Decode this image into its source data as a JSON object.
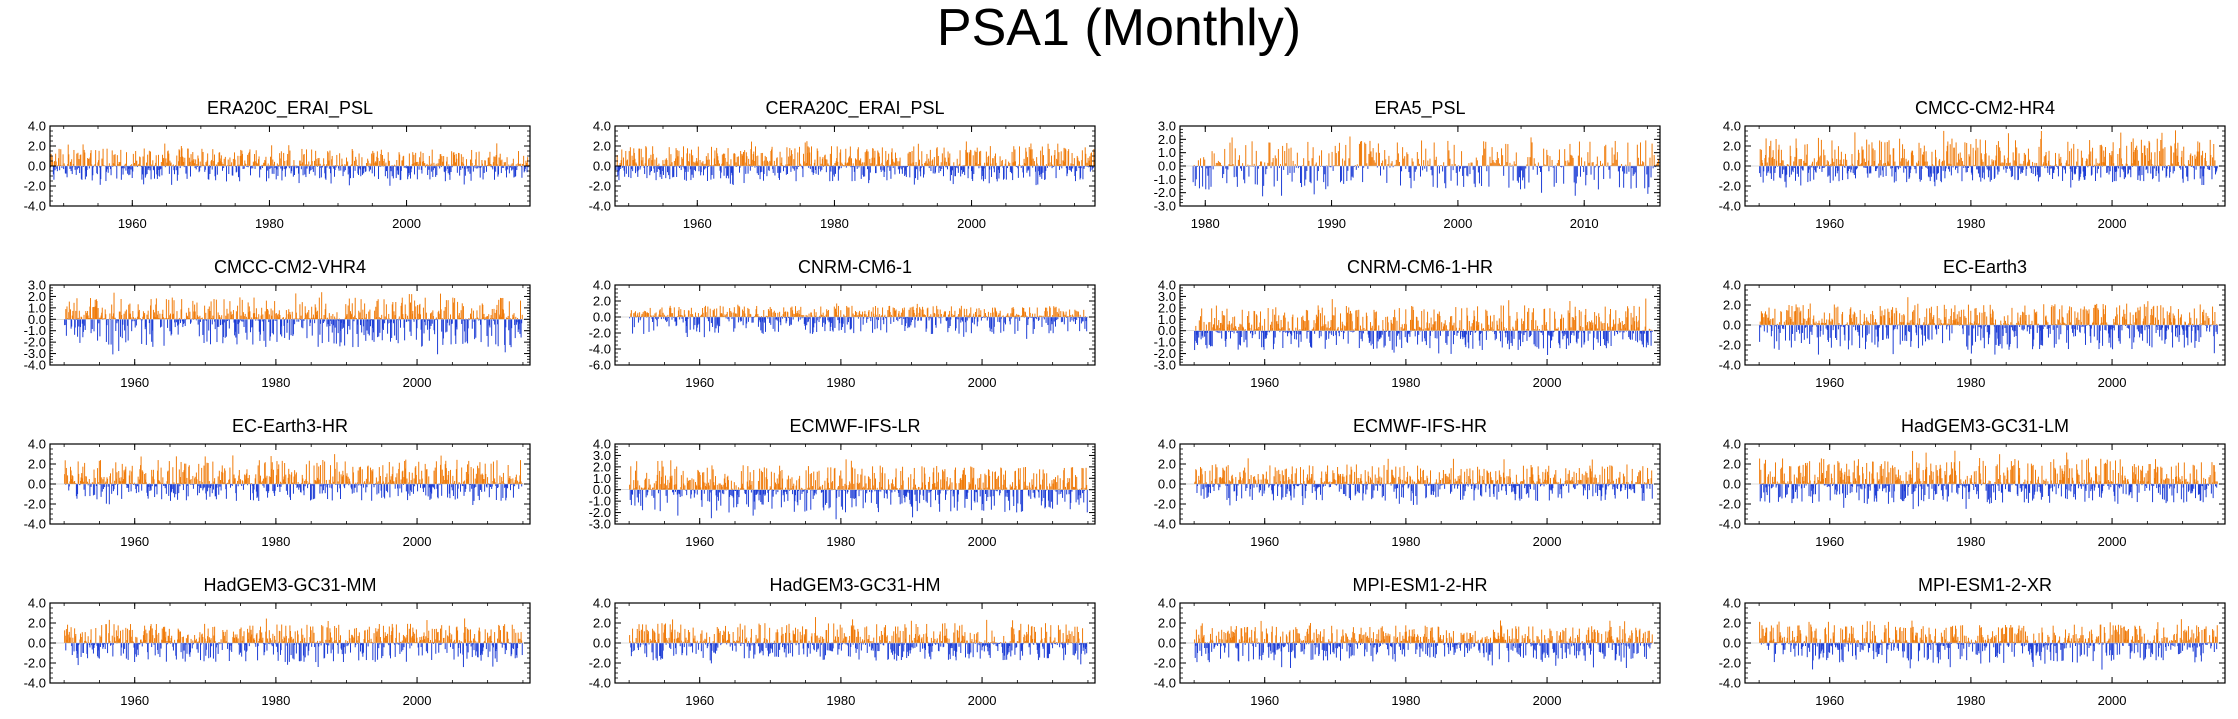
{
  "title": "PSA1 (Monthly)",
  "colors": {
    "positive": "#f07c0c",
    "negative": "#1f3fd6",
    "axis": "#000000"
  },
  "chart_data": [
    {
      "type": "bar",
      "title": "ERA20C_ERAI_PSL",
      "xlim": [
        1948,
        2018
      ],
      "ylim": [
        -4,
        4
      ],
      "yticks": [
        "4.0",
        "2.0",
        "0.0",
        "-2.0",
        "-4.0"
      ],
      "xticks": [
        1960,
        1980,
        2000
      ],
      "x": "monthly 1948-2017",
      "values_summary": {
        "max": 2.3,
        "min": -2.0
      }
    },
    {
      "type": "bar",
      "title": "CERA20C_ERAI_PSL",
      "xlim": [
        1948,
        2018
      ],
      "ylim": [
        -4,
        4
      ],
      "yticks": [
        "4.0",
        "2.0",
        "0.0",
        "-2.0",
        "-4.0"
      ],
      "xticks": [
        1960,
        1980,
        2000
      ],
      "x": "monthly 1948-2017",
      "values_summary": {
        "max": 2.6,
        "min": -2.0
      }
    },
    {
      "type": "bar",
      "title": "ERA5_PSL",
      "xlim": [
        1978,
        2016
      ],
      "ylim": [
        -3,
        3
      ],
      "yticks": [
        "3.0",
        "2.0",
        "1.0",
        "0.0",
        "-1.0",
        "-2.0",
        "-3.0"
      ],
      "xticks": [
        1980,
        1990,
        2000,
        2010
      ],
      "x": "monthly 1979-2015",
      "values_summary": {
        "max": 2.5,
        "min": -2.3
      }
    },
    {
      "type": "bar",
      "title": "CMCC-CM2-HR4",
      "xlim": [
        1948,
        2016
      ],
      "ylim": [
        -4,
        4
      ],
      "yticks": [
        "4.0",
        "2.0",
        "0.0",
        "-2.0",
        "-4.0"
      ],
      "xticks": [
        1960,
        1980,
        2000
      ],
      "x": "monthly 1950-2014",
      "values_summary": {
        "max": 3.7,
        "min": -2.2
      }
    },
    {
      "type": "bar",
      "title": "CMCC-CM2-VHR4",
      "xlim": [
        1948,
        2016
      ],
      "ylim": [
        -4,
        3
      ],
      "yticks": [
        "3.0",
        "2.0",
        "1.0",
        "0.0",
        "-1.0",
        "-2.0",
        "-3.0",
        "-4.0"
      ],
      "xticks": [
        1960,
        1980,
        2000
      ],
      "x": "monthly 1950-2014",
      "values_summary": {
        "max": 2.5,
        "min": -3.2
      }
    },
    {
      "type": "bar",
      "title": "CNRM-CM6-1",
      "xlim": [
        1948,
        2016
      ],
      "ylim": [
        -6,
        4
      ],
      "yticks": [
        "4.0",
        "2.0",
        "0.0",
        "-2.0",
        "-4.0",
        "-6.0"
      ],
      "xticks": [
        1960,
        1980,
        2000
      ],
      "x": "monthly 1950-2014",
      "values_summary": {
        "max": 1.8,
        "min": -2.8
      }
    },
    {
      "type": "bar",
      "title": "CNRM-CM6-1-HR",
      "xlim": [
        1948,
        2016
      ],
      "ylim": [
        -3,
        4
      ],
      "yticks": [
        "4.0",
        "3.0",
        "2.0",
        "1.0",
        "0.0",
        "-1.0",
        "-2.0",
        "-3.0"
      ],
      "xticks": [
        1960,
        1980,
        2000
      ],
      "x": "monthly 1950-2014",
      "values_summary": {
        "max": 2.9,
        "min": -2.2
      }
    },
    {
      "type": "bar",
      "title": "EC-Earth3",
      "xlim": [
        1948,
        2016
      ],
      "ylim": [
        -4,
        4
      ],
      "yticks": [
        "4.0",
        "2.0",
        "0.0",
        "-2.0",
        "-4.0"
      ],
      "xticks": [
        1960,
        1980,
        2000
      ],
      "x": "monthly 1950-2014",
      "values_summary": {
        "max": 2.8,
        "min": -3.3
      }
    },
    {
      "type": "bar",
      "title": "EC-Earth3-HR",
      "xlim": [
        1948,
        2016
      ],
      "ylim": [
        -4,
        4
      ],
      "yticks": [
        "4.0",
        "2.0",
        "0.0",
        "-2.0",
        "-4.0"
      ],
      "xticks": [
        1960,
        1980,
        2000
      ],
      "x": "monthly 1950-2014",
      "values_summary": {
        "max": 3.2,
        "min": -2.2
      }
    },
    {
      "type": "bar",
      "title": "ECMWF-IFS-LR",
      "xlim": [
        1948,
        2016
      ],
      "ylim": [
        -3,
        4
      ],
      "yticks": [
        "4.0",
        "3.0",
        "2.0",
        "1.0",
        "0.0",
        "-1.0",
        "-2.0",
        "-3.0"
      ],
      "xticks": [
        1960,
        1980,
        2000
      ],
      "x": "monthly 1950-2014",
      "values_summary": {
        "max": 2.8,
        "min": -2.6
      }
    },
    {
      "type": "bar",
      "title": "ECMWF-IFS-HR",
      "xlim": [
        1948,
        2016
      ],
      "ylim": [
        -4,
        4
      ],
      "yticks": [
        "4.0",
        "2.0",
        "0.0",
        "-2.0",
        "-4.0"
      ],
      "xticks": [
        1960,
        1980,
        2000
      ],
      "x": "monthly 1950-2014",
      "values_summary": {
        "max": 2.6,
        "min": -2.2
      }
    },
    {
      "type": "bar",
      "title": "HadGEM3-GC31-LM",
      "xlim": [
        1948,
        2016
      ],
      "ylim": [
        -4,
        4
      ],
      "yticks": [
        "4.0",
        "2.0",
        "0.0",
        "-2.0",
        "-4.0"
      ],
      "xticks": [
        1960,
        1980,
        2000
      ],
      "x": "monthly 1950-2014",
      "values_summary": {
        "max": 3.4,
        "min": -2.6
      }
    },
    {
      "type": "bar",
      "title": "HadGEM3-GC31-MM",
      "xlim": [
        1948,
        2016
      ],
      "ylim": [
        -4,
        4
      ],
      "yticks": [
        "4.0",
        "2.0",
        "0.0",
        "-2.0",
        "-4.0"
      ],
      "xticks": [
        1960,
        1980,
        2000
      ],
      "x": "monthly 1950-2014",
      "values_summary": {
        "max": 2.5,
        "min": -2.5
      }
    },
    {
      "type": "bar",
      "title": "HadGEM3-GC31-HM",
      "xlim": [
        1948,
        2016
      ],
      "ylim": [
        -4,
        4
      ],
      "yticks": [
        "4.0",
        "2.0",
        "0.0",
        "-2.0",
        "-4.0"
      ],
      "xticks": [
        1960,
        1980,
        2000
      ],
      "x": "monthly 1950-2014",
      "values_summary": {
        "max": 2.6,
        "min": -2.3
      }
    },
    {
      "type": "bar",
      "title": "MPI-ESM1-2-HR",
      "xlim": [
        1948,
        2016
      ],
      "ylim": [
        -4,
        4
      ],
      "yticks": [
        "4.0",
        "2.0",
        "0.0",
        "-2.0",
        "-4.0"
      ],
      "xticks": [
        1960,
        1980,
        2000
      ],
      "x": "monthly 1950-2014",
      "values_summary": {
        "max": 2.3,
        "min": -2.5
      }
    },
    {
      "type": "bar",
      "title": "MPI-ESM1-2-XR",
      "xlim": [
        1948,
        2016
      ],
      "ylim": [
        -4,
        4
      ],
      "yticks": [
        "4.0",
        "2.0",
        "0.0",
        "-2.0",
        "-4.0"
      ],
      "xticks": [
        1960,
        1980,
        2000
      ],
      "x": "monthly 1950-2014",
      "values_summary": {
        "max": 2.4,
        "min": -2.7
      }
    }
  ]
}
